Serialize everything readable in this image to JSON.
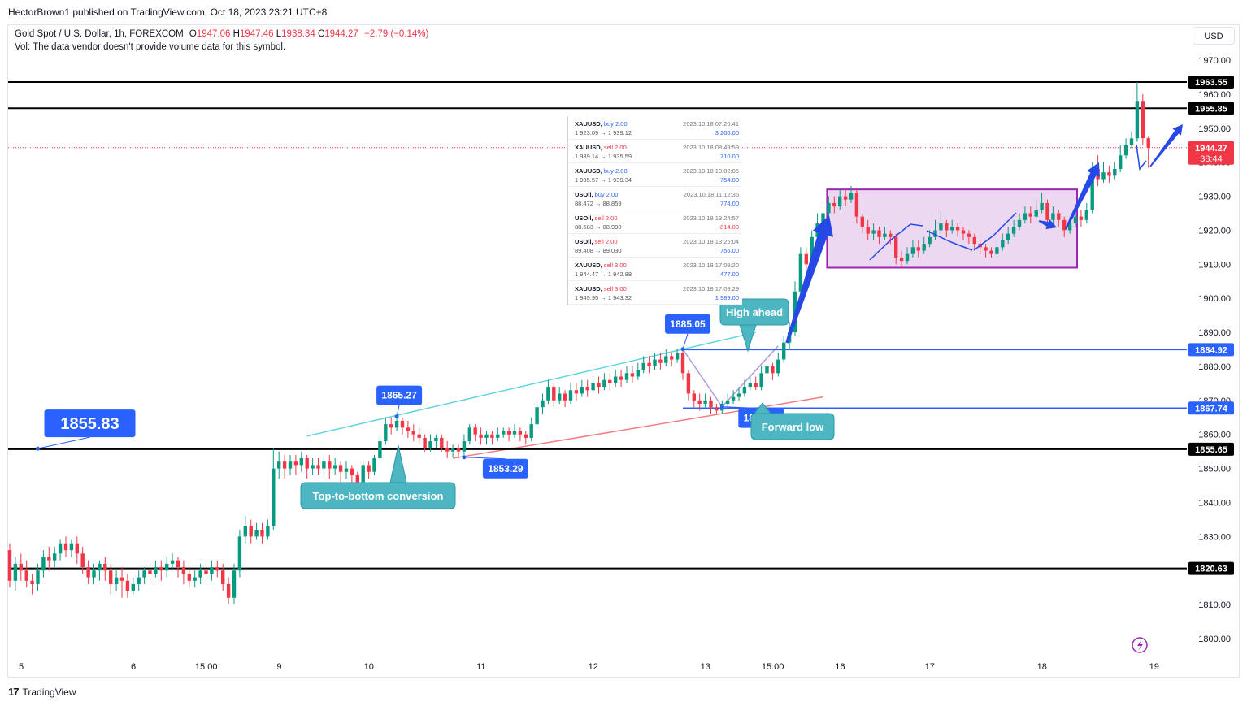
{
  "publisher": "HectorBrown1 published on TradingView.com, Oct 18, 2023 23:21 UTC+8",
  "header": {
    "symbol": "Gold Spot / U.S. Dollar, 1h, FOREXCOM",
    "o_label": "O",
    "o": "1947.06",
    "h_label": "H",
    "h": "1947.46",
    "l_label": "L",
    "l": "1938.34",
    "c_label": "C",
    "c": "1944.27",
    "change": "−2.79 (−0.14%)",
    "vol_note": "Vol: The data vendor doesn't provide volume data for this symbol."
  },
  "currency_button": "USD",
  "footer": {
    "logo": "17",
    "brand": "TradingView"
  },
  "colors": {
    "up": "#089981",
    "down": "#f23645",
    "blue_label": "#2962ff",
    "teal": "#4db6c2",
    "purple_box": "#9c27b0",
    "arrow_blue": "#2548e6"
  },
  "chart_data": {
    "type": "candlestick",
    "ylim": [
      1795,
      1977
    ],
    "y_ticks": [
      "1970.00",
      "1960.00",
      "1950.00",
      "1940.00",
      "1930.00",
      "1920.00",
      "1910.00",
      "1900.00",
      "1890.00",
      "1880.00",
      "1870.00",
      "1860.00",
      "1850.00",
      "1840.00",
      "1830.00",
      "1820.00",
      "1810.00",
      "1800.00"
    ],
    "x_ticks": [
      "5",
      "6",
      "15:00",
      "9",
      "10",
      "11",
      "12",
      "13",
      "15:00",
      "16",
      "17",
      "18",
      "19"
    ],
    "x_tick_pos": [
      0,
      20,
      33,
      46,
      62,
      82,
      102,
      122,
      134,
      146,
      162,
      182,
      202
    ],
    "last_price": "1944.27",
    "countdown": "38:44",
    "horizontal_levels": [
      {
        "value": 1963.55,
        "label": "1963.55",
        "style": "black"
      },
      {
        "value": 1955.85,
        "label": "1955.85",
        "style": "black"
      },
      {
        "value": 1884.92,
        "label": "1884.92",
        "style": "blue"
      },
      {
        "value": 1867.74,
        "label": "1867.74",
        "style": "blue"
      },
      {
        "value": 1855.65,
        "label": "1855.65",
        "style": "black"
      },
      {
        "value": 1820.63,
        "label": "1820.63",
        "style": "black"
      }
    ],
    "price_callouts": [
      {
        "label": "1865.27",
        "bar": 69,
        "value": 1865.27
      },
      {
        "label": "1853.29",
        "bar": 81,
        "value": 1853.29
      },
      {
        "label": "1885.05",
        "bar": 120,
        "value": 1885.05
      },
      {
        "label": "1868.13",
        "bar": 127,
        "value": 1868.13
      },
      {
        "label": "1855.83",
        "bar": 5,
        "value": 1855.83
      }
    ],
    "annotations": [
      "Top-to-bottom conversion",
      "High ahead",
      "Forward low"
    ],
    "candles": [
      [
        1826,
        1817,
        1828,
        1815
      ],
      [
        1817,
        1822,
        1824,
        1814
      ],
      [
        1822,
        1820,
        1825,
        1817
      ],
      [
        1820,
        1817,
        1823,
        1815
      ],
      [
        1817,
        1816,
        1819,
        1813
      ],
      [
        1816,
        1820,
        1822,
        1814
      ],
      [
        1820,
        1824,
        1826,
        1818
      ],
      [
        1824,
        1823,
        1827,
        1820
      ],
      [
        1823,
        1825,
        1827,
        1821
      ],
      [
        1825,
        1828,
        1829,
        1823
      ],
      [
        1828,
        1826,
        1830,
        1824
      ],
      [
        1826,
        1828,
        1829,
        1824
      ],
      [
        1828,
        1825,
        1830,
        1822
      ],
      [
        1825,
        1821,
        1827,
        1819
      ],
      [
        1821,
        1818,
        1823,
        1816
      ],
      [
        1818,
        1820,
        1822,
        1816
      ],
      [
        1820,
        1822,
        1823,
        1817
      ],
      [
        1822,
        1820,
        1824,
        1817
      ],
      [
        1820,
        1816,
        1822,
        1813
      ],
      [
        1816,
        1818,
        1820,
        1814
      ],
      [
        1818,
        1817,
        1821,
        1812
      ],
      [
        1817,
        1814,
        1819,
        1812
      ],
      [
        1814,
        1816,
        1818,
        1813
      ],
      [
        1816,
        1818,
        1820,
        1814
      ],
      [
        1818,
        1820,
        1821,
        1816
      ],
      [
        1820,
        1819,
        1822,
        1817
      ],
      [
        1819,
        1821,
        1823,
        1818
      ],
      [
        1821,
        1820,
        1823,
        1817
      ],
      [
        1820,
        1822,
        1824,
        1818
      ],
      [
        1822,
        1823,
        1825,
        1820
      ],
      [
        1823,
        1821,
        1824,
        1818
      ],
      [
        1821,
        1819,
        1823,
        1816
      ],
      [
        1819,
        1817,
        1821,
        1815
      ],
      [
        1817,
        1818,
        1820,
        1815
      ],
      [
        1818,
        1820,
        1822,
        1816
      ],
      [
        1820,
        1819,
        1822,
        1816
      ],
      [
        1819,
        1821,
        1823,
        1817
      ],
      [
        1821,
        1820,
        1823,
        1818
      ],
      [
        1820,
        1816,
        1822,
        1814
      ],
      [
        1816,
        1812,
        1818,
        1810
      ],
      [
        1812,
        1820,
        1822,
        1810
      ],
      [
        1820,
        1830,
        1832,
        1818
      ],
      [
        1830,
        1833,
        1836,
        1828
      ],
      [
        1833,
        1830,
        1835,
        1828
      ],
      [
        1830,
        1832,
        1834,
        1829
      ],
      [
        1832,
        1830,
        1834,
        1828
      ],
      [
        1830,
        1833,
        1835,
        1829
      ],
      [
        1833,
        1850,
        1856,
        1832
      ],
      [
        1850,
        1852,
        1855,
        1847
      ],
      [
        1852,
        1850,
        1854,
        1847
      ],
      [
        1850,
        1852,
        1854,
        1848
      ],
      [
        1852,
        1851,
        1854,
        1848
      ],
      [
        1851,
        1853,
        1855,
        1849
      ],
      [
        1853,
        1850,
        1854,
        1847
      ],
      [
        1850,
        1851,
        1853,
        1848
      ],
      [
        1851,
        1850,
        1853,
        1848
      ],
      [
        1850,
        1852,
        1854,
        1848
      ],
      [
        1852,
        1850,
        1854,
        1847
      ],
      [
        1850,
        1851,
        1853,
        1848
      ],
      [
        1851,
        1849,
        1852,
        1846
      ],
      [
        1849,
        1850,
        1852,
        1847
      ],
      [
        1850,
        1848,
        1851,
        1845
      ],
      [
        1848,
        1846,
        1849,
        1844
      ],
      [
        1846,
        1851,
        1852,
        1845
      ],
      [
        1851,
        1849,
        1852,
        1847
      ],
      [
        1849,
        1853,
        1854,
        1848
      ],
      [
        1853,
        1858,
        1860,
        1852
      ],
      [
        1858,
        1863,
        1865,
        1857
      ],
      [
        1863,
        1862,
        1865,
        1860
      ],
      [
        1862,
        1864,
        1865.27,
        1861
      ],
      [
        1864,
        1862,
        1865,
        1860
      ],
      [
        1862,
        1861,
        1864,
        1859
      ],
      [
        1861,
        1860,
        1863,
        1858
      ],
      [
        1860,
        1859,
        1862,
        1857
      ],
      [
        1859,
        1856,
        1860,
        1855
      ],
      [
        1856,
        1858,
        1860,
        1855
      ],
      [
        1858,
        1859,
        1860,
        1856
      ],
      [
        1859,
        1856,
        1860,
        1855
      ],
      [
        1856,
        1855,
        1858,
        1853
      ],
      [
        1855,
        1856,
        1857,
        1853.29
      ],
      [
        1856,
        1855,
        1857,
        1853
      ],
      [
        1855,
        1858,
        1860,
        1854
      ],
      [
        1858,
        1862,
        1863,
        1857
      ],
      [
        1862,
        1860,
        1863,
        1858
      ],
      [
        1860,
        1859,
        1862,
        1857
      ],
      [
        1859,
        1860,
        1861,
        1857
      ],
      [
        1860,
        1859,
        1861,
        1857
      ],
      [
        1859,
        1860,
        1862,
        1858
      ],
      [
        1860,
        1861,
        1862,
        1859
      ],
      [
        1861,
        1860,
        1862,
        1858
      ],
      [
        1860,
        1861,
        1863,
        1859
      ],
      [
        1861,
        1860,
        1862,
        1858
      ],
      [
        1860,
        1859,
        1861,
        1857
      ],
      [
        1859,
        1863,
        1865,
        1858
      ],
      [
        1863,
        1868,
        1870,
        1862
      ],
      [
        1868,
        1870,
        1872,
        1866
      ],
      [
        1870,
        1874,
        1876,
        1869
      ],
      [
        1874,
        1870,
        1875,
        1868
      ],
      [
        1870,
        1872,
        1874,
        1869
      ],
      [
        1872,
        1870,
        1873,
        1868
      ],
      [
        1870,
        1873,
        1875,
        1869
      ],
      [
        1873,
        1872,
        1875,
        1870
      ],
      [
        1872,
        1874,
        1876,
        1871
      ],
      [
        1874,
        1873,
        1876,
        1871
      ],
      [
        1873,
        1875,
        1877,
        1872
      ],
      [
        1875,
        1874,
        1877,
        1872
      ],
      [
        1874,
        1876,
        1878,
        1873
      ],
      [
        1876,
        1875,
        1878,
        1873
      ],
      [
        1875,
        1877,
        1879,
        1874
      ],
      [
        1877,
        1876,
        1879,
        1874
      ],
      [
        1876,
        1878,
        1880,
        1875
      ],
      [
        1878,
        1877,
        1880,
        1875
      ],
      [
        1877,
        1879,
        1881,
        1876
      ],
      [
        1879,
        1881,
        1883,
        1878
      ],
      [
        1881,
        1880,
        1883,
        1878
      ],
      [
        1880,
        1882,
        1884,
        1879
      ],
      [
        1882,
        1881,
        1884,
        1879
      ],
      [
        1881,
        1883,
        1885,
        1880
      ],
      [
        1883,
        1882,
        1884,
        1880
      ],
      [
        1882,
        1884,
        1885.05,
        1881
      ],
      [
        1884,
        1878,
        1885,
        1876
      ],
      [
        1878,
        1872,
        1879,
        1870
      ],
      [
        1872,
        1870,
        1873,
        1868
      ],
      [
        1870,
        1869,
        1872,
        1867
      ],
      [
        1869,
        1870,
        1872,
        1868
      ],
      [
        1870,
        1868,
        1871,
        1866
      ],
      [
        1868,
        1867,
        1869,
        1866
      ],
      [
        1867,
        1869,
        1870,
        1866
      ],
      [
        1869,
        1870,
        1872,
        1868
      ],
      [
        1870,
        1871,
        1873,
        1869
      ],
      [
        1871,
        1872,
        1874,
        1870
      ],
      [
        1872,
        1874,
        1876,
        1871
      ],
      [
        1874,
        1875,
        1877,
        1873
      ],
      [
        1875,
        1874,
        1877,
        1873
      ],
      [
        1874,
        1878,
        1880,
        1873
      ],
      [
        1878,
        1880,
        1881,
        1877
      ],
      [
        1880,
        1878,
        1881,
        1876
      ],
      [
        1878,
        1882,
        1884,
        1877
      ],
      [
        1882,
        1887,
        1889,
        1881
      ],
      [
        1887,
        1890,
        1893,
        1885
      ],
      [
        1890,
        1902,
        1905,
        1889
      ],
      [
        1902,
        1913,
        1915,
        1900
      ],
      [
        1913,
        1910,
        1915,
        1908
      ],
      [
        1910,
        1918,
        1920,
        1909
      ],
      [
        1918,
        1922,
        1925,
        1917
      ],
      [
        1922,
        1925,
        1927,
        1921
      ],
      [
        1925,
        1928,
        1930,
        1924
      ],
      [
        1928,
        1927,
        1930,
        1925
      ],
      [
        1927,
        1930,
        1932,
        1926
      ],
      [
        1930,
        1929,
        1932,
        1927
      ],
      [
        1929,
        1931,
        1933,
        1928
      ],
      [
        1931,
        1924,
        1932,
        1922
      ],
      [
        1924,
        1921,
        1925,
        1919
      ],
      [
        1921,
        1919,
        1923,
        1917
      ],
      [
        1919,
        1920,
        1922,
        1917
      ],
      [
        1920,
        1918,
        1921,
        1916
      ],
      [
        1918,
        1919,
        1921,
        1917
      ],
      [
        1919,
        1918,
        1920,
        1916
      ],
      [
        1918,
        1912,
        1919,
        1910
      ],
      [
        1912,
        1911,
        1914,
        1909
      ],
      [
        1911,
        1913,
        1915,
        1910
      ],
      [
        1913,
        1915,
        1917,
        1912
      ],
      [
        1915,
        1914,
        1917,
        1912
      ],
      [
        1914,
        1916,
        1918,
        1913
      ],
      [
        1916,
        1918,
        1920,
        1915
      ],
      [
        1918,
        1920,
        1923,
        1917
      ],
      [
        1920,
        1922,
        1926,
        1919
      ],
      [
        1922,
        1920,
        1923,
        1918
      ],
      [
        1920,
        1921,
        1923,
        1919
      ],
      [
        1921,
        1920,
        1922,
        1918
      ],
      [
        1920,
        1919,
        1921,
        1917
      ],
      [
        1919,
        1918,
        1920,
        1916
      ],
      [
        1918,
        1916,
        1919,
        1914
      ],
      [
        1916,
        1915,
        1917,
        1913
      ],
      [
        1915,
        1914,
        1916,
        1912
      ],
      [
        1914,
        1913,
        1915,
        1912
      ],
      [
        1913,
        1915,
        1917,
        1912
      ],
      [
        1915,
        1917,
        1919,
        1914
      ],
      [
        1917,
        1919,
        1921,
        1916
      ],
      [
        1919,
        1921,
        1923,
        1918
      ],
      [
        1921,
        1923,
        1925,
        1920
      ],
      [
        1923,
        1925,
        1927,
        1922
      ],
      [
        1925,
        1924,
        1927,
        1922
      ],
      [
        1924,
        1926,
        1929,
        1923
      ],
      [
        1926,
        1928,
        1931,
        1925
      ],
      [
        1928,
        1923,
        1929,
        1921
      ],
      [
        1923,
        1925,
        1927,
        1922
      ],
      [
        1925,
        1923,
        1926,
        1921
      ],
      [
        1923,
        1920,
        1924,
        1918
      ],
      [
        1920,
        1922,
        1924,
        1919
      ],
      [
        1922,
        1924,
        1926,
        1921
      ],
      [
        1924,
        1923,
        1926,
        1921
      ],
      [
        1923,
        1926,
        1928,
        1922
      ],
      [
        1926,
        1938,
        1940,
        1925
      ],
      [
        1938,
        1935,
        1942,
        1933
      ],
      [
        1935,
        1937,
        1940,
        1934
      ],
      [
        1937,
        1936,
        1939,
        1934
      ],
      [
        1936,
        1938,
        1940,
        1935
      ],
      [
        1938,
        1942,
        1945,
        1937
      ],
      [
        1942,
        1945,
        1947,
        1941
      ],
      [
        1945,
        1947,
        1949,
        1944
      ],
      [
        1947,
        1958,
        1963.55,
        1946
      ],
      [
        1958,
        1947.06,
        1960,
        1945
      ],
      [
        1947.06,
        1944.27,
        1947.46,
        1938.34
      ]
    ]
  },
  "trades": [
    {
      "sym": "XAUUSD,",
      "side": "buy 2.00",
      "kind": "buy",
      "range": "1 923.09 → 1 939.12",
      "time": "2023.10.18 07:20:41",
      "pnl": "3 206.00",
      "pos": true
    },
    {
      "sym": "XAUUSD,",
      "side": "sell 2.00",
      "kind": "sell",
      "range": "1 939.14 → 1 935.59",
      "time": "2023.10.18 08:49:59",
      "pnl": "710.00",
      "pos": true
    },
    {
      "sym": "XAUUSD,",
      "side": "buy 2.00",
      "kind": "buy",
      "range": "1 935.57 → 1 939.34",
      "time": "2023.10.18 10:02:06",
      "pnl": "754.00",
      "pos": true
    },
    {
      "sym": "USOil,",
      "side": "buy 2.00",
      "kind": "buy",
      "range": "88.472 → 88.859",
      "time": "2023.10.18 11:12:36",
      "pnl": "774.00",
      "pos": true
    },
    {
      "sym": "USOil,",
      "side": "sell 2.00",
      "kind": "sell",
      "range": "88.583 → 88.990",
      "time": "2023.10.18 13:24:57",
      "pnl": "-814.00",
      "pos": false
    },
    {
      "sym": "USOil,",
      "side": "sell 2.00",
      "kind": "sell",
      "range": "89.408 → 89.030",
      "time": "2023.10.18 13:25:04",
      "pnl": "756.00",
      "pos": true
    },
    {
      "sym": "XAUUSD,",
      "side": "sell 3.00",
      "kind": "sell",
      "range": "1 944.47 → 1 942.88",
      "time": "2023.10.18 17:09:20",
      "pnl": "477.00",
      "pos": true
    },
    {
      "sym": "XAUUSD,",
      "side": "sell 3.00",
      "kind": "sell",
      "range": "1 949.95 → 1 943.32",
      "time": "2023.10.18 17:09:29",
      "pnl": "1 989.00",
      "pos": true
    }
  ]
}
